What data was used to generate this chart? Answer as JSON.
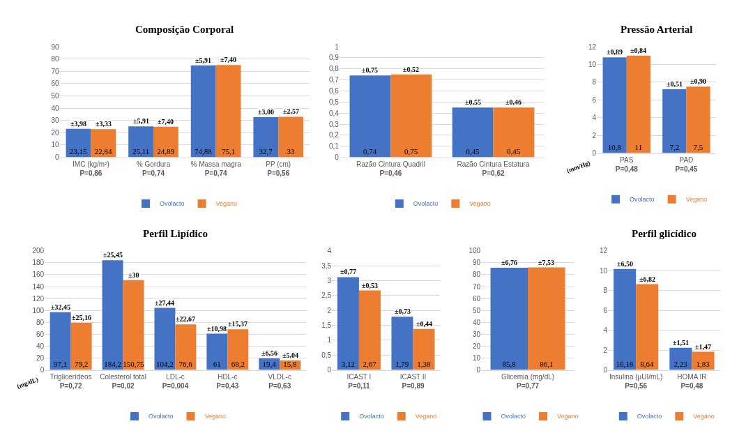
{
  "chart_data": [
    {
      "type": "bar",
      "title": "Composição Corporal",
      "categories": [
        "IMC (kg/m²)\nP=0,86",
        "% Gordura\nP=0,74",
        "% Massa magra\nP=0,74",
        "PP (cm)\nP=0,56"
      ],
      "series": [
        {
          "name": "Ovolacto",
          "color": "#4472c4",
          "values": [
            23.15,
            25.11,
            74.88,
            32.7
          ],
          "value_labels": [
            "23,15",
            "25,11",
            "74,88",
            "32,7"
          ]
        },
        {
          "name": "Vegano",
          "color": "#ed7d31",
          "values": [
            22.84,
            24.89,
            75.1,
            33
          ],
          "value_labels": [
            "22,84",
            "24,89",
            "75,1",
            "33"
          ]
        }
      ],
      "ylim": [
        0,
        90
      ],
      "yticks": [
        0,
        10,
        20,
        30,
        40,
        50,
        60,
        70,
        80,
        90
      ],
      "grid": "y",
      "legend": "bottom",
      "annotations": [
        {
          "text": "±3,98",
          "x": "IMC (kg/m²)\nP=0,86",
          "y": 23.15
        },
        {
          "text": "±3,33",
          "x": "IMC (kg/m²)\nP=0,86",
          "y": 22.84
        },
        {
          "text": "±5,91",
          "x": "% Gordura\nP=0,74",
          "y": 25.11
        },
        {
          "text": "±7,40",
          "x": "% Gordura\nP=0,74",
          "y": 24.89
        },
        {
          "text": "±5,91",
          "x": "% Massa magra\nP=0,74",
          "y": 74.88
        },
        {
          "text": "±7,40",
          "x": "% Massa magra\nP=0,74",
          "y": 75.1
        },
        {
          "text": "±3,00",
          "x": "PP (cm)\nP=0,56",
          "y": 32.7
        },
        {
          "text": "±2,57",
          "x": "PP (cm)\nP=0,56",
          "y": 33
        }
      ]
    },
    {
      "type": "bar",
      "categories": [
        "Razão Cintura Quadril\nP=0,46",
        "Razão Cintura Estatura\nP=0,62"
      ],
      "series": [
        {
          "name": "Ovolacto",
          "color": "#4472c4",
          "values": [
            0.74,
            0.45
          ],
          "value_labels": [
            "0,74",
            "0,45"
          ]
        },
        {
          "name": "Vegano",
          "color": "#ed7d31",
          "values": [
            0.75,
            0.45
          ],
          "value_labels": [
            "0,75",
            "0,45"
          ]
        }
      ],
      "ylim": [
        0,
        1
      ],
      "yticks": [
        0,
        {
          "value": 0.1,
          "label": "0,1"
        },
        {
          "value": 0.2,
          "label": "0,2"
        },
        {
          "value": 0.3,
          "label": "0,3"
        },
        {
          "value": 0.4,
          "label": "0,4"
        },
        {
          "value": 0.5,
          "label": "0,5"
        },
        {
          "value": 0.6,
          "label": "0,6"
        },
        {
          "value": 0.7,
          "label": "0,7"
        },
        {
          "value": 0.8,
          "label": "0,8"
        },
        {
          "value": 0.9,
          "label": "0,9"
        },
        1
      ],
      "grid": "y",
      "legend": "bottom",
      "annotations": [
        {
          "text": "±0,75",
          "x": "Razão Cintura Quadril\nP=0,46",
          "y": 0.74
        },
        {
          "text": "±0,52",
          "x": "Razão Cintura Quadril\nP=0,46",
          "y": 0.75
        },
        {
          "text": "±0,55",
          "x": "Razão Cintura Estatura\nP=0,62",
          "y": 0.45
        },
        {
          "text": "±0,46",
          "x": "Razão Cintura Estatura\nP=0,62",
          "y": 0.45
        }
      ]
    },
    {
      "type": "bar",
      "title": "Pressão Arterial",
      "ylabel": "(mm/Hg)",
      "categories": [
        "PAS\nP=0,48",
        "PAD\nP=0,45"
      ],
      "series": [
        {
          "name": "Ovolacto",
          "color": "#4472c4",
          "values": [
            10.8,
            7.2
          ],
          "value_labels": [
            "10,8",
            "7,2"
          ]
        },
        {
          "name": "Vegano",
          "color": "#ed7d31",
          "values": [
            11,
            7.5
          ],
          "value_labels": [
            "11",
            "7,5"
          ]
        }
      ],
      "ylim": [
        0,
        12
      ],
      "yticks": [
        0,
        2,
        4,
        6,
        8,
        10,
        12
      ],
      "grid": "y",
      "legend": "bottom",
      "annotations": [
        {
          "text": "±0,89",
          "x": "PAS\nP=0,48",
          "y": 10.8
        },
        {
          "text": "±0,84",
          "x": "PAS\nP=0,48",
          "y": 11
        },
        {
          "text": "±0,51",
          "x": "PAD\nP=0,45",
          "y": 7.2
        },
        {
          "text": "±0,90",
          "x": "PAD\nP=0,45",
          "y": 7.5
        }
      ]
    },
    {
      "type": "bar",
      "title": "Perfil Lipídico",
      "ylabel": "(mg/dL)",
      "categories": [
        "Triglicerídeos\nP=0,72",
        "Colesterol total\nP=0,02",
        "LDL-c\nP=0,004",
        "HDL-c\nP=0,43",
        "VLDL-c\nP=0,63"
      ],
      "series": [
        {
          "name": "Ovolacto",
          "color": "#4472c4",
          "values": [
            97.1,
            184.2,
            104.2,
            61,
            19.4
          ],
          "value_labels": [
            "97,1",
            "184,2",
            "104,2",
            "61",
            "19,4"
          ]
        },
        {
          "name": "Vegano",
          "color": "#ed7d31",
          "values": [
            79.2,
            150.75,
            76.6,
            68.2,
            15.8
          ],
          "value_labels": [
            "79,2",
            "150,75",
            "76,6",
            "68,2",
            "15,8"
          ]
        }
      ],
      "ylim": [
        0,
        200
      ],
      "yticks": [
        0,
        20,
        40,
        60,
        80,
        100,
        120,
        140,
        160,
        180,
        200
      ],
      "grid": "y",
      "legend": "bottom",
      "annotations": [
        {
          "text": "±32,45",
          "x": "Triglicerídeos\nP=0,72",
          "y": 97.1
        },
        {
          "text": "±25,16",
          "x": "Triglicerídeos\nP=0,72",
          "y": 79.2
        },
        {
          "text": "±25,45",
          "x": "Colesterol total\nP=0,02",
          "y": 184.2
        },
        {
          "text": "±30",
          "x": "Colesterol total\nP=0,02",
          "y": 150.75
        },
        {
          "text": "±27,44",
          "x": "LDL-c\nP=0,004",
          "y": 104.2
        },
        {
          "text": "±22,67",
          "x": "LDL-c\nP=0,004",
          "y": 76.6
        },
        {
          "text": "±10,98",
          "x": "HDL-c\nP=0,43",
          "y": 61
        },
        {
          "text": "±15,37",
          "x": "HDL-c\nP=0,43",
          "y": 68.2
        },
        {
          "text": "±6,56",
          "x": "VLDL-c\nP=0,63",
          "y": 19.4
        },
        {
          "text": "±5,04",
          "x": "VLDL-c\nP=0,63",
          "y": 15.8
        }
      ]
    },
    {
      "type": "bar",
      "categories": [
        "ICAST I\nP=0,11",
        "ICAST II\nP=0,89"
      ],
      "series": [
        {
          "name": "Ovolacto",
          "color": "#4472c4",
          "values": [
            3.12,
            1.79
          ],
          "value_labels": [
            "3,12",
            "1,79"
          ]
        },
        {
          "name": "Vegano",
          "color": "#ed7d31",
          "values": [
            2.67,
            1.38
          ],
          "value_labels": [
            "2,67",
            "1,38"
          ]
        }
      ],
      "ylim": [
        0,
        4
      ],
      "yticks": [
        0,
        {
          "value": 0.5,
          "label": "0,5"
        },
        1,
        {
          "value": 1.5,
          "label": "1,5"
        },
        2,
        {
          "value": 2.5,
          "label": "2,5"
        },
        3,
        {
          "value": 3.5,
          "label": "3,5"
        },
        4
      ],
      "grid": "y",
      "legend": "bottom",
      "annotations": [
        {
          "text": "±0,77",
          "x": "ICAST I\nP=0,11",
          "y": 3.12
        },
        {
          "text": "±0,53",
          "x": "ICAST I\nP=0,11",
          "y": 2.67
        },
        {
          "text": "±0,73",
          "x": "ICAST II\nP=0,89",
          "y": 1.79
        },
        {
          "text": "±0,44",
          "x": "ICAST II\nP=0,89",
          "y": 1.38
        }
      ]
    },
    {
      "type": "bar",
      "categories": [
        "Glicemia (mg/dL)\nP=0,77"
      ],
      "series": [
        {
          "name": "Ovolacto",
          "color": "#4472c4",
          "values": [
            85.8
          ],
          "value_labels": [
            "85,8"
          ]
        },
        {
          "name": "Vegano",
          "color": "#ed7d31",
          "values": [
            86.1
          ],
          "value_labels": [
            "86,1"
          ]
        }
      ],
      "ylim": [
        0,
        100
      ],
      "yticks": [
        0,
        10,
        20,
        30,
        40,
        50,
        60,
        70,
        80,
        90,
        100
      ],
      "grid": "y",
      "legend": "bottom",
      "annotations": [
        {
          "text": "±6,76",
          "x": "Glicemia (mg/dL)\nP=0,77",
          "y": 85.8
        },
        {
          "text": "±7,53",
          "x": "Glicemia (mg/dL)\nP=0,77",
          "y": 86.1
        }
      ]
    },
    {
      "type": "bar",
      "title": "Perfil glicídico",
      "categories": [
        "Insulina (µUI/mL)\nP=0,56",
        "HOMA IR\nP=0,48"
      ],
      "series": [
        {
          "name": "Ovolacto",
          "color": "#4472c4",
          "values": [
            10.18,
            2.23
          ],
          "value_labels": [
            "10,18",
            "2,23"
          ]
        },
        {
          "name": "Vegano",
          "color": "#ed7d31",
          "values": [
            8.64,
            1.83
          ],
          "value_labels": [
            "8,64",
            "1,83"
          ]
        }
      ],
      "ylim": [
        0,
        12
      ],
      "yticks": [
        0,
        2,
        4,
        6,
        8,
        10,
        12
      ],
      "grid": "y",
      "legend": "bottom",
      "annotations": [
        {
          "text": "±6,50",
          "x": "Insulina (µUI/mL)\nP=0,56",
          "y": 10.18
        },
        {
          "text": "±6,82",
          "x": "Insulina (µUI/mL)\nP=0,56",
          "y": 8.64
        },
        {
          "text": "±1,51",
          "x": "HOMA IR\nP=0,48",
          "y": 2.23
        },
        {
          "text": "±1,47",
          "x": "HOMA IR\nP=0,48",
          "y": 1.83
        }
      ]
    }
  ]
}
